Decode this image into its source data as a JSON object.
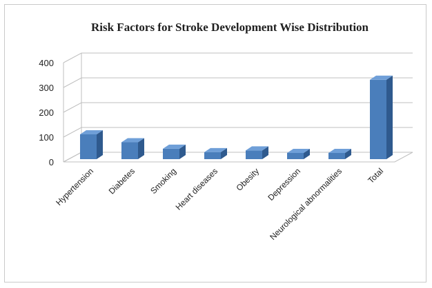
{
  "chart_data": {
    "type": "bar",
    "title": "Risk Factors for Stroke Development Wise Distribution",
    "xlabel": "",
    "ylabel": "",
    "categories": [
      "Hypertension",
      "Diabetes",
      "Smoking",
      "Heart diseases",
      "Obesity",
      "Depression",
      "Neurological abnormalities",
      "Total"
    ],
    "values": [
      100,
      68,
      42,
      28,
      35,
      25,
      25,
      320
    ],
    "ylim": [
      0,
      400
    ],
    "yticks": [
      "0",
      "100",
      "200",
      "300",
      "400"
    ],
    "grid": true,
    "legend": "none",
    "style": "3d-column",
    "colors": {
      "bar_front": "#4a7ebb",
      "bar_side": "#2f5a8e",
      "bar_top": "#6f9fd8",
      "grid": "#bfbfbf"
    }
  }
}
